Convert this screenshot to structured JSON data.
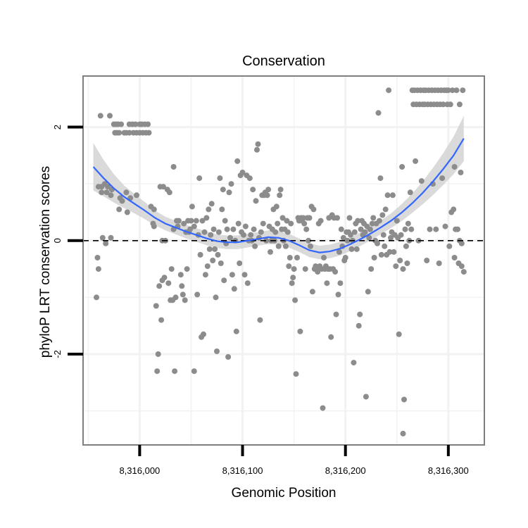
{
  "chart_data": {
    "type": "scatter",
    "title": "Conservation",
    "xlabel": "Genomic Position",
    "ylabel": "phyloP LRT conservation scores",
    "xlim": [
      8315945,
      8316335
    ],
    "ylim": [
      -3.6,
      2.9
    ],
    "x_ticks": [
      8316000,
      8316100,
      8316200,
      8316300
    ],
    "x_tick_labels": [
      "8,316,000",
      "8,316,100",
      "8,316,200",
      "8,316,300"
    ],
    "x_grid_minor": [
      8315950,
      8316050,
      8316150,
      8316250
    ],
    "y_ticks": [
      -2,
      0,
      2
    ],
    "y_tick_labels": [
      "-2",
      "0",
      "2"
    ],
    "y_grid_minor": [
      -3,
      -1,
      1
    ],
    "reference_line": {
      "y": 0,
      "style": "dashed"
    },
    "colors": {
      "points": "#8c8c8c",
      "smooth": "#3366ff",
      "band": "#d3d3d3",
      "grid": "#f2f2f2",
      "frame": "#7f7f7f"
    },
    "points": [
      [
        8315958,
        -1.0
      ],
      [
        8315959,
        -0.3
      ],
      [
        8315960,
        -0.5
      ],
      [
        8315960,
        0.95
      ],
      [
        8315962,
        2.2
      ],
      [
        8315963,
        0.85
      ],
      [
        8315963,
        0.95
      ],
      [
        8315964,
        0.05
      ],
      [
        8315966,
        1.0
      ],
      [
        8315967,
        -0.05
      ],
      [
        8315968,
        0.85
      ],
      [
        8315969,
        0.95
      ],
      [
        8315971,
        2.2
      ],
      [
        8315972,
        0.8
      ],
      [
        8315972,
        0.05
      ],
      [
        8315973,
        0.9
      ],
      [
        8315975,
        2.05
      ],
      [
        8315976,
        1.9
      ],
      [
        8315977,
        2.05
      ],
      [
        8315978,
        1.9
      ],
      [
        8315979,
        2.05
      ],
      [
        8315980,
        1.9
      ],
      [
        8315980,
        0.55
      ],
      [
        8315981,
        0.75
      ],
      [
        8315982,
        2.05
      ],
      [
        8315983,
        0.7
      ],
      [
        8315985,
        1.9
      ],
      [
        8315987,
        1.9
      ],
      [
        8315987,
        0.85
      ],
      [
        8315988,
        0.5
      ],
      [
        8315990,
        1.9
      ],
      [
        8315990,
        2.05
      ],
      [
        8315991,
        0.75
      ],
      [
        8315993,
        2.05
      ],
      [
        8315994,
        1.9
      ],
      [
        8315996,
        2.05
      ],
      [
        8315997,
        1.9
      ],
      [
        8315997,
        0.8
      ],
      [
        8316000,
        2.05
      ],
      [
        8316000,
        1.9
      ],
      [
        8316002,
        2.05
      ],
      [
        8316003,
        1.9
      ],
      [
        8316005,
        2.05
      ],
      [
        8316006,
        1.9
      ],
      [
        8316008,
        2.05
      ],
      [
        8316009,
        1.9
      ],
      [
        8316011,
        0.6
      ],
      [
        8316013,
        0.3
      ],
      [
        8316014,
        0.25
      ],
      [
        8316014,
        0.55
      ],
      [
        8316016,
        -1.15
      ],
      [
        8316017,
        -2.3
      ],
      [
        8316018,
        -2.0
      ],
      [
        8316019,
        -0.8
      ],
      [
        8316020,
        0.95
      ],
      [
        8316021,
        -1.4
      ],
      [
        8316022,
        0.0
      ],
      [
        8316022,
        -0.7
      ],
      [
        8316023,
        0.95
      ],
      [
        8316024,
        -0.65
      ],
      [
        8316025,
        0.0
      ],
      [
        8316027,
        0.9
      ],
      [
        8316028,
        -0.75
      ],
      [
        8316029,
        0.85
      ],
      [
        8316030,
        -1.05
      ],
      [
        8316031,
        -0.5
      ],
      [
        8316032,
        -1.05
      ],
      [
        8316033,
        1.3
      ],
      [
        8316033,
        0.2
      ],
      [
        8316034,
        -2.3
      ],
      [
        8316035,
        -1.0
      ],
      [
        8316036,
        0.35
      ],
      [
        8316037,
        0.25
      ],
      [
        8316038,
        0.35
      ],
      [
        8316040,
        -0.6
      ],
      [
        8316041,
        -0.8
      ],
      [
        8316042,
        -0.95
      ],
      [
        8316043,
        0.3
      ],
      [
        8316044,
        -1.05
      ],
      [
        8316045,
        0.15
      ],
      [
        8316046,
        -0.5
      ],
      [
        8316047,
        0.35
      ],
      [
        8316048,
        0.15
      ],
      [
        8316049,
        0.2
      ],
      [
        8316050,
        0.35
      ],
      [
        8316051,
        0.6
      ],
      [
        8316053,
        0.25
      ],
      [
        8316053,
        -2.3
      ],
      [
        8316055,
        0.35
      ],
      [
        8316056,
        -0.95
      ],
      [
        8316057,
        0.1
      ],
      [
        8316058,
        1.1
      ],
      [
        8316059,
        -0.25
      ],
      [
        8316060,
        -1.7
      ],
      [
        8316061,
        0.35
      ],
      [
        8316062,
        -1.65
      ],
      [
        8316063,
        0.15
      ],
      [
        8316064,
        -0.6
      ],
      [
        8316065,
        0.4
      ],
      [
        8316066,
        -0.45
      ],
      [
        8316067,
        0.55
      ],
      [
        8316068,
        -0.15
      ],
      [
        8316069,
        0.1
      ],
      [
        8316070,
        0.65
      ],
      [
        8316071,
        -0.35
      ],
      [
        8316072,
        0.2
      ],
      [
        8316073,
        -0.15
      ],
      [
        8316074,
        -1.0
      ],
      [
        8316075,
        -1.95
      ],
      [
        8316076,
        -0.25
      ],
      [
        8316077,
        0.15
      ],
      [
        8316078,
        1.1
      ],
      [
        8316079,
        -0.4
      ],
      [
        8316080,
        0.55
      ],
      [
        8316081,
        0.9
      ],
      [
        8316082,
        -0.7
      ],
      [
        8316083,
        0.35
      ],
      [
        8316084,
        -0.05
      ],
      [
        8316085,
        0.2
      ],
      [
        8316086,
        -2.05
      ],
      [
        8316087,
        0.85
      ],
      [
        8316088,
        0.05
      ],
      [
        8316089,
        1.0
      ],
      [
        8316090,
        -0.6
      ],
      [
        8316091,
        0.2
      ],
      [
        8316092,
        -0.85
      ],
      [
        8316093,
        0.0
      ],
      [
        8316094,
        -1.6
      ],
      [
        8316095,
        1.4
      ],
      [
        8316096,
        0.3
      ],
      [
        8316097,
        -0.4
      ],
      [
        8316098,
        1.15
      ],
      [
        8316099,
        0.15
      ],
      [
        8316100,
        1.2
      ],
      [
        8316101,
        0.1
      ],
      [
        8316102,
        -0.6
      ],
      [
        8316103,
        0.25
      ],
      [
        8316104,
        1.15
      ],
      [
        8316105,
        -0.75
      ],
      [
        8316106,
        0.0
      ],
      [
        8316107,
        1.1
      ],
      [
        8316108,
        0.1
      ],
      [
        8316109,
        0.0
      ],
      [
        8316110,
        0.9
      ],
      [
        8316111,
        0.2
      ],
      [
        8316112,
        -0.1
      ],
      [
        8316113,
        0.7
      ],
      [
        8316114,
        1.6
      ],
      [
        8316115,
        1.7
      ],
      [
        8316116,
        0.05
      ],
      [
        8316117,
        -1.4
      ],
      [
        8316118,
        0.15
      ],
      [
        8316119,
        0.8
      ],
      [
        8316120,
        0.3
      ],
      [
        8316121,
        0.8
      ],
      [
        8316122,
        0.85
      ],
      [
        8316123,
        0.0
      ],
      [
        8316124,
        0.8
      ],
      [
        8316125,
        0.9
      ],
      [
        8316126,
        0.25
      ],
      [
        8316127,
        -0.2
      ],
      [
        8316128,
        0.0
      ],
      [
        8316129,
        0.2
      ],
      [
        8316130,
        0.55
      ],
      [
        8316131,
        0.0
      ],
      [
        8316132,
        0.15
      ],
      [
        8316133,
        0.6
      ],
      [
        8316134,
        0.3
      ],
      [
        8316135,
        -0.1
      ],
      [
        8316136,
        0.8
      ],
      [
        8316137,
        0.9
      ],
      [
        8316138,
        0.2
      ],
      [
        8316139,
        0.4
      ],
      [
        8316140,
        0.0
      ],
      [
        8316141,
        0.2
      ],
      [
        8316142,
        -0.1
      ],
      [
        8316143,
        0.35
      ],
      [
        8316144,
        0.15
      ],
      [
        8316145,
        -0.45
      ],
      [
        8316146,
        -0.3
      ],
      [
        8316147,
        0.3
      ],
      [
        8316148,
        -0.75
      ],
      [
        8316149,
        -0.65
      ],
      [
        8316150,
        -0.5
      ],
      [
        8316151,
        -1.05
      ],
      [
        8316152,
        -2.35
      ],
      [
        8316153,
        -0.3
      ],
      [
        8316154,
        0.4
      ],
      [
        8316155,
        0.35
      ],
      [
        8316156,
        -1.6
      ],
      [
        8316157,
        0.4
      ],
      [
        8316158,
        0.35
      ],
      [
        8316159,
        0.4
      ],
      [
        8316160,
        0.3
      ],
      [
        8316161,
        -0.5
      ],
      [
        8316162,
        0.2
      ],
      [
        8316163,
        0.4
      ],
      [
        8316164,
        0.0
      ],
      [
        8316165,
        0.4
      ],
      [
        8316166,
        -0.1
      ],
      [
        8316167,
        0.6
      ],
      [
        8316168,
        -0.9
      ],
      [
        8316169,
        0.55
      ],
      [
        8316170,
        -0.5
      ],
      [
        8316171,
        -0.45
      ],
      [
        8316172,
        -0.5
      ],
      [
        8316173,
        -0.55
      ],
      [
        8316174,
        0.3
      ],
      [
        8316175,
        -0.45
      ],
      [
        8316176,
        0.35
      ],
      [
        8316177,
        -0.5
      ],
      [
        8316178,
        -2.95
      ],
      [
        8316179,
        -0.3
      ],
      [
        8316180,
        -0.5
      ],
      [
        8316181,
        -0.45
      ],
      [
        8316182,
        -0.75
      ],
      [
        8316183,
        -0.5
      ],
      [
        8316184,
        0.4
      ],
      [
        8316185,
        -0.5
      ],
      [
        8316186,
        -1.7
      ],
      [
        8316187,
        0.45
      ],
      [
        8316188,
        -0.5
      ],
      [
        8316189,
        0.4
      ],
      [
        8316190,
        -0.55
      ],
      [
        8316191,
        -1.3
      ],
      [
        8316192,
        0.4
      ],
      [
        8316193,
        -0.95
      ],
      [
        8316194,
        -0.2
      ],
      [
        8316195,
        -0.75
      ],
      [
        8316196,
        0.2
      ],
      [
        8316197,
        -0.1
      ],
      [
        8316198,
        0.05
      ],
      [
        8316199,
        -0.35
      ],
      [
        8316200,
        -0.3
      ],
      [
        8316201,
        0.15
      ],
      [
        8316202,
        0.0
      ],
      [
        8316203,
        0.15
      ],
      [
        8316204,
        0.4
      ],
      [
        8316205,
        0.1
      ],
      [
        8316206,
        -0.15
      ],
      [
        8316207,
        0.0
      ],
      [
        8316208,
        -2.15
      ],
      [
        8316209,
        0.15
      ],
      [
        8316210,
        0.3
      ],
      [
        8316211,
        -0.15
      ],
      [
        8316212,
        0.35
      ],
      [
        8316213,
        -1.5
      ],
      [
        8316214,
        -1.3
      ],
      [
        8316215,
        0.2
      ],
      [
        8316216,
        0.35
      ],
      [
        8316217,
        0.1
      ],
      [
        8316218,
        0.3
      ],
      [
        8316219,
        0.15
      ],
      [
        8316220,
        -2.75
      ],
      [
        8316221,
        0.25
      ],
      [
        8316222,
        -0.9
      ],
      [
        8316223,
        0.05
      ],
      [
        8316224,
        0.2
      ],
      [
        8316225,
        -0.5
      ],
      [
        8316226,
        0.3
      ],
      [
        8316227,
        0.4
      ],
      [
        8316228,
        -0.3
      ],
      [
        8316229,
        0.0
      ],
      [
        8316230,
        0.3
      ],
      [
        8316231,
        -0.05
      ],
      [
        8316232,
        2.25
      ],
      [
        8316233,
        0.35
      ],
      [
        8316234,
        1.1
      ],
      [
        8316235,
        -0.25
      ],
      [
        8316236,
        0.45
      ],
      [
        8316237,
        0.1
      ],
      [
        8316238,
        -0.1
      ],
      [
        8316239,
        0.55
      ],
      [
        8316240,
        -0.25
      ],
      [
        8316241,
        0.8
      ],
      [
        8316242,
        2.65
      ],
      [
        8316243,
        -0.2
      ],
      [
        8316244,
        0.05
      ],
      [
        8316245,
        0.15
      ],
      [
        8316246,
        0.8
      ],
      [
        8316247,
        -0.2
      ],
      [
        8316248,
        0.1
      ],
      [
        8316249,
        -0.45
      ],
      [
        8316250,
        0.35
      ],
      [
        8316251,
        0.05
      ],
      [
        8316252,
        -1.65
      ],
      [
        8316253,
        -0.35
      ],
      [
        8316254,
        0.1
      ],
      [
        8316255,
        1.3
      ],
      [
        8316256,
        -0.5
      ],
      [
        8316256,
        -3.4
      ],
      [
        8316257,
        -2.8
      ],
      [
        8316258,
        0.2
      ],
      [
        8316259,
        -0.1
      ],
      [
        8316260,
        -0.4
      ],
      [
        8316261,
        0.3
      ],
      [
        8316262,
        0.0
      ],
      [
        8316263,
        0.85
      ],
      [
        8316264,
        0.2
      ],
      [
        8316265,
        2.65
      ],
      [
        8316266,
        2.4
      ],
      [
        8316267,
        2.65
      ],
      [
        8316268,
        1.4
      ],
      [
        8316269,
        2.4
      ],
      [
        8316270,
        2.65
      ],
      [
        8316271,
        0.0
      ],
      [
        8316272,
        2.4
      ],
      [
        8316273,
        2.65
      ],
      [
        8316274,
        1.05
      ],
      [
        8316275,
        2.4
      ],
      [
        8316276,
        2.65
      ],
      [
        8316277,
        2.4
      ],
      [
        8316278,
        2.65
      ],
      [
        8316279,
        -0.35
      ],
      [
        8316280,
        2.4
      ],
      [
        8316281,
        2.65
      ],
      [
        8316282,
        0.2
      ],
      [
        8316283,
        2.4
      ],
      [
        8316284,
        2.65
      ],
      [
        8316285,
        1.0
      ],
      [
        8316286,
        2.4
      ],
      [
        8316287,
        2.65
      ],
      [
        8316288,
        0.2
      ],
      [
        8316289,
        2.4
      ],
      [
        8316290,
        2.65
      ],
      [
        8316291,
        -0.4
      ],
      [
        8316292,
        2.4
      ],
      [
        8316293,
        2.65
      ],
      [
        8316294,
        1.1
      ],
      [
        8316295,
        2.4
      ],
      [
        8316296,
        2.65
      ],
      [
        8316297,
        0.25
      ],
      [
        8316298,
        2.65
      ],
      [
        8316299,
        2.4
      ],
      [
        8316300,
        2.65
      ],
      [
        8316301,
        -0.1
      ],
      [
        8316302,
        2.4
      ],
      [
        8316303,
        0.5
      ],
      [
        8316304,
        2.65
      ],
      [
        8316305,
        0.55
      ],
      [
        8316306,
        1.3
      ],
      [
        8316306,
        -0.3
      ],
      [
        8316307,
        0.2
      ],
      [
        8316308,
        2.65
      ],
      [
        8316309,
        0.2
      ],
      [
        8316310,
        -0.4
      ],
      [
        8316311,
        0.0
      ],
      [
        8316311,
        2.4
      ],
      [
        8316312,
        1.2
      ],
      [
        8316313,
        -0.05
      ],
      [
        8316313,
        -0.45
      ],
      [
        8316314,
        2.65
      ],
      [
        8316315,
        -0.55
      ]
    ],
    "smooth": {
      "x": [
        8315955,
        8315965,
        8315975,
        8315985,
        8315995,
        8316005,
        8316015,
        8316025,
        8316035,
        8316045,
        8316055,
        8316065,
        8316075,
        8316085,
        8316095,
        8316105,
        8316115,
        8316125,
        8316135,
        8316145,
        8316155,
        8316165,
        8316175,
        8316185,
        8316195,
        8316205,
        8316215,
        8316225,
        8316235,
        8316245,
        8316255,
        8316265,
        8316275,
        8316285,
        8316295,
        8316305,
        8316315
      ],
      "y": [
        1.3,
        1.1,
        0.92,
        0.77,
        0.65,
        0.53,
        0.4,
        0.3,
        0.23,
        0.16,
        0.1,
        0.04,
        -0.01,
        -0.03,
        -0.03,
        0.0,
        0.03,
        0.06,
        0.05,
        0.0,
        -0.08,
        -0.17,
        -0.21,
        -0.19,
        -0.14,
        -0.06,
        0.03,
        0.13,
        0.24,
        0.36,
        0.5,
        0.66,
        0.84,
        1.04,
        1.26,
        1.5,
        1.8
      ],
      "band": [
        0.42,
        0.32,
        0.25,
        0.2,
        0.17,
        0.15,
        0.13,
        0.12,
        0.12,
        0.12,
        0.12,
        0.12,
        0.12,
        0.12,
        0.12,
        0.12,
        0.12,
        0.12,
        0.12,
        0.12,
        0.12,
        0.12,
        0.12,
        0.12,
        0.12,
        0.12,
        0.12,
        0.12,
        0.12,
        0.13,
        0.15,
        0.17,
        0.2,
        0.24,
        0.28,
        0.33,
        0.4
      ]
    }
  }
}
